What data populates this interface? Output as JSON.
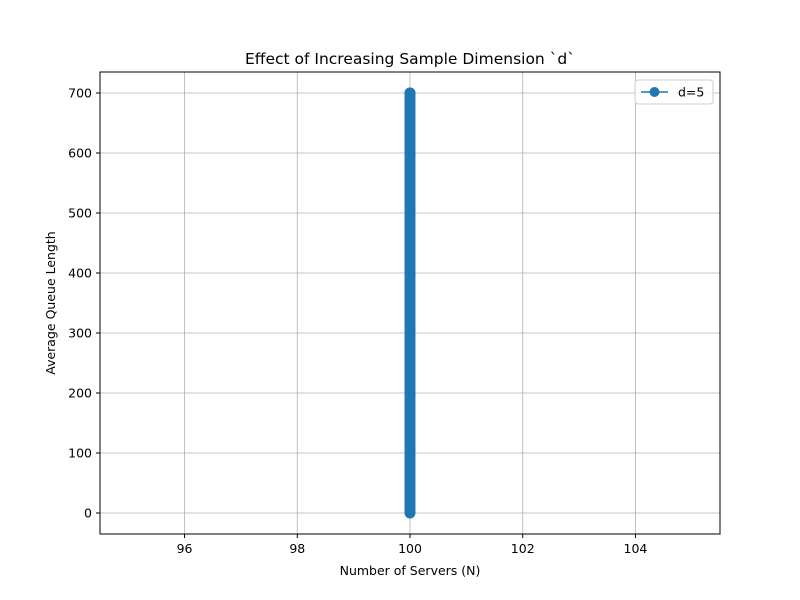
{
  "chart_data": {
    "type": "line",
    "title": "Effect of Increasing Sample Dimension `d`",
    "xlabel": "Number of Servers (N)",
    "ylabel": "Average Queue Length",
    "xlim": [
      94.5,
      105.5
    ],
    "ylim": [
      -35,
      735
    ],
    "xticks": [
      96,
      98,
      100,
      102,
      104
    ],
    "yticks": [
      0,
      100,
      200,
      300,
      400,
      500,
      600,
      700
    ],
    "grid": true,
    "legend_position": "upper-right",
    "series": [
      {
        "name": "d=5",
        "color": "#1f77b4",
        "marker": "circle",
        "x_constant": 100,
        "y_min": 0,
        "y_max": 700,
        "note_points": "dense markers"
      }
    ]
  }
}
